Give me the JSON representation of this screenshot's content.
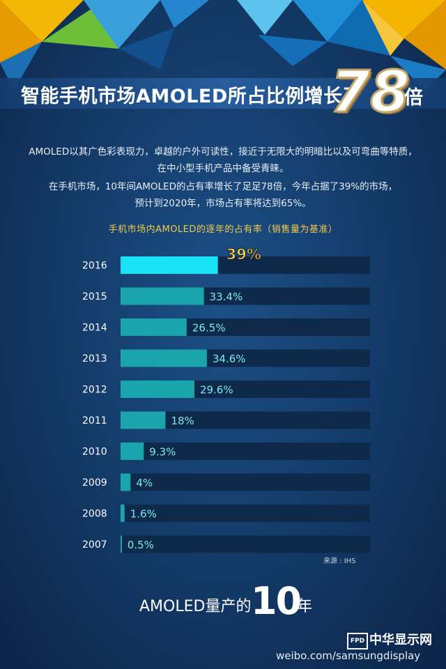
{
  "header": {
    "title": "智能手机市场AMOLED所占比例增长了",
    "highlight_number": "78",
    "title_suffix": "倍"
  },
  "intro": [
    "AMOLED以其广色彩表现力，卓越的户外可读性，接近于无限大的明暗比以及可弯曲等特质，",
    "在中小型手机产品中备受青睐。",
    "在手机市场，10年间AMOLED的占有率增长了足足78倍，今年占据了39%的市场，",
    "预计到2020年，市场占有率将达到65%。"
  ],
  "chart_data": {
    "type": "bar",
    "orientation": "horizontal",
    "title": "手机市场内AMOLED的逐年的占有率（销售量为基准）",
    "categories": [
      "2016",
      "2015",
      "2014",
      "2013",
      "2012",
      "2011",
      "2010",
      "2009",
      "2008",
      "2007"
    ],
    "values": [
      39,
      33.4,
      26.5,
      34.6,
      29.6,
      18,
      9.3,
      4,
      1.6,
      0.5
    ],
    "labels": [
      "39%",
      "33.4%",
      "26.5%",
      "34.6%",
      "29.6%",
      "18%",
      "9.3%",
      "4%",
      "1.6%",
      "0.5%"
    ],
    "xlim": [
      0,
      100
    ],
    "highlight_index": 0,
    "colors": {
      "bar": "#1aa5ad",
      "highlight_bar": "#19e4f7",
      "track": "#0d2a4a",
      "label": "#7fe6f5",
      "highlight_label": "#f2d15a"
    }
  },
  "source": "来源 : IHS",
  "footer": {
    "text": "AMOLED量产的",
    "number": "10",
    "suffix": "年"
  },
  "brand": {
    "box": "FPD",
    "name": "中华显示网",
    "watermark": "weibo.com/samsungdisplay"
  }
}
